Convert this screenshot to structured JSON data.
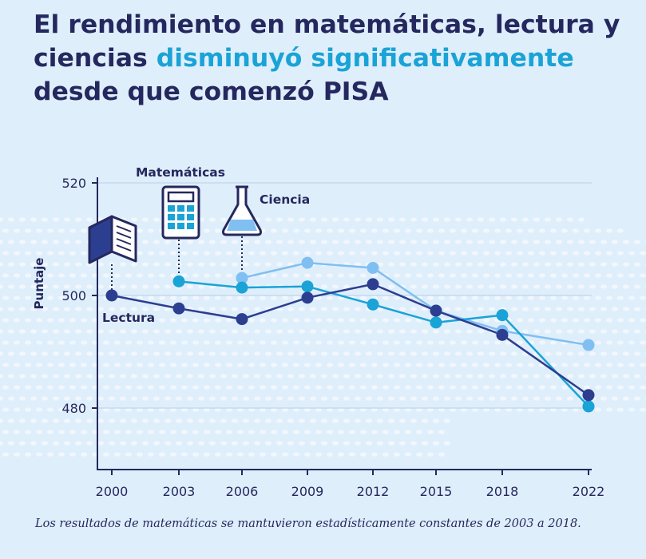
{
  "title": {
    "part1": "El rendimiento en matemáticas, lectura y ciencias ",
    "highlight": "disminuyó significativamente",
    "part2": " desde que comenzó PISA"
  },
  "note": "Los resultados de matemáticas se mantuvieron estadísticamente constantes de 2003 a 2018.",
  "colors": {
    "background": "#dfeefb",
    "title": "#25285e",
    "highlight": "#1aa3d6",
    "lectura": "#2c3e8f",
    "matematicas": "#1aa3d6",
    "ciencia": "#80bff2",
    "axis": "#25285e",
    "grid": "#b9cde6"
  },
  "icons": {
    "lectura": "open-book-icon",
    "matematicas": "calculator-icon",
    "ciencia": "flask-icon"
  },
  "chart_data": {
    "type": "line",
    "ylabel": "Puntaje",
    "xlabel": "",
    "ylim": [
      476,
      521
    ],
    "yticks": [
      480,
      500,
      520
    ],
    "grid": true,
    "x": [
      2000,
      2003,
      2006,
      2009,
      2012,
      2015,
      2018,
      2022
    ],
    "series": [
      {
        "name": "Lectura",
        "key": "lectura",
        "values": [
          500,
          497.7,
          495.8,
          499.6,
          502,
          497.3,
          493,
          482.3
        ]
      },
      {
        "name": "Matemáticas",
        "key": "matematicas",
        "values": [
          null,
          502.5,
          501.4,
          501.6,
          498.4,
          495.2,
          496.5,
          480.3
        ]
      },
      {
        "name": "Ciencia",
        "key": "ciencia",
        "values": [
          null,
          null,
          503.1,
          505.8,
          504.9,
          497.3,
          493.7,
          491.2
        ]
      }
    ]
  }
}
